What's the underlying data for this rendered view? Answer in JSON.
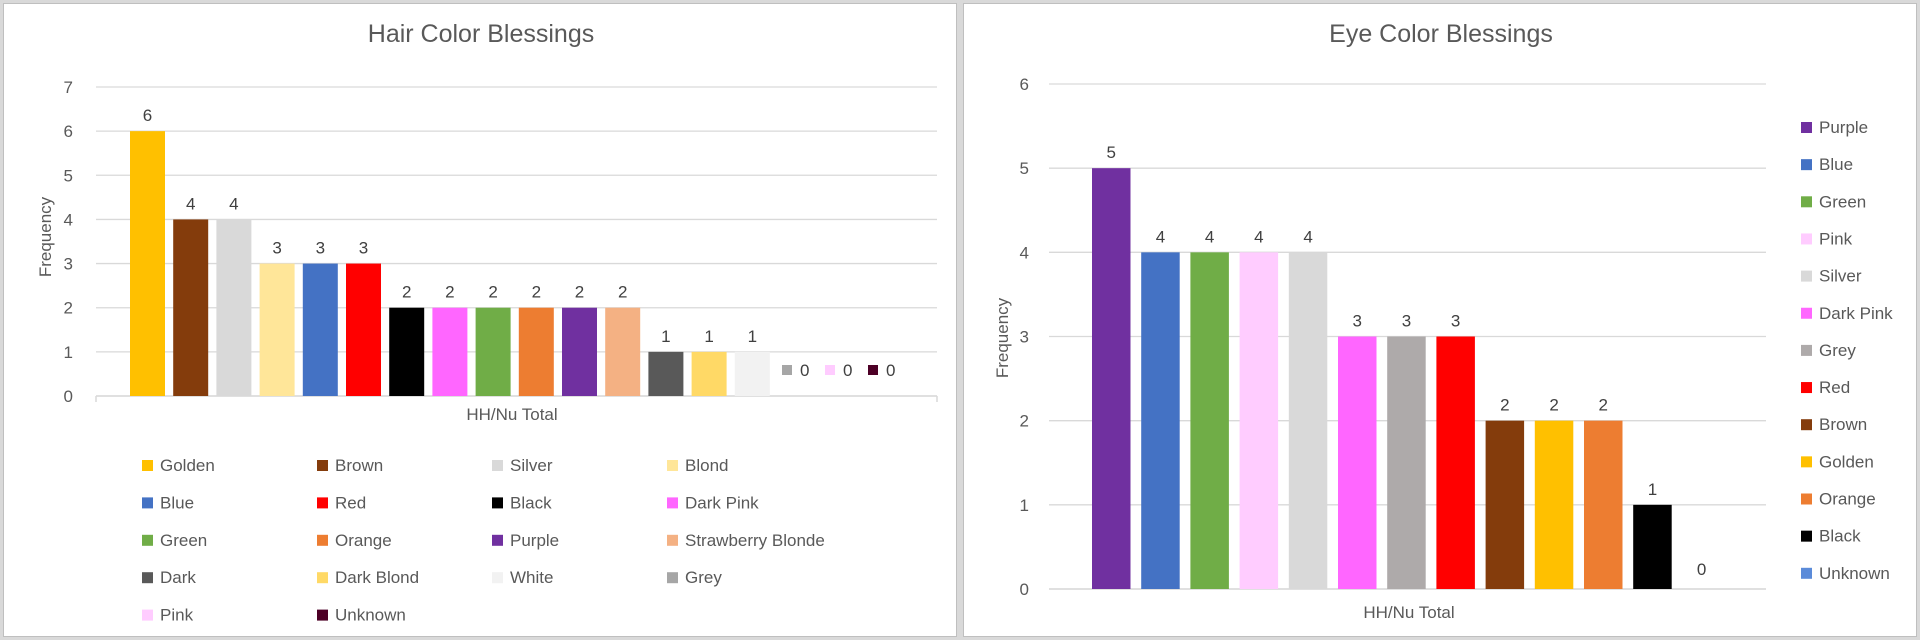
{
  "chart_data": [
    {
      "type": "bar",
      "title": "Hair Color Blessings",
      "xlabel": "HH/Nu Total",
      "ylabel": "Frequency",
      "ylim": [
        0,
        7
      ],
      "yticks": [
        "0",
        "1",
        "2",
        "3",
        "4",
        "5",
        "6",
        "7"
      ],
      "grid": true,
      "legend_position": "bottom",
      "series": [
        {
          "name": "Golden",
          "value": 6,
          "color": "#FFC000"
        },
        {
          "name": "Brown",
          "value": 4,
          "color": "#843C0C"
        },
        {
          "name": "Silver",
          "value": 4,
          "color": "#D9D9D9"
        },
        {
          "name": "Blond",
          "value": 3,
          "color": "#FFE699"
        },
        {
          "name": "Blue",
          "value": 3,
          "color": "#4472C4"
        },
        {
          "name": "Red",
          "value": 3,
          "color": "#FF0000"
        },
        {
          "name": "Black",
          "value": 2,
          "color": "#000000"
        },
        {
          "name": "Dark Pink",
          "value": 2,
          "color": "#FF66FF"
        },
        {
          "name": "Green",
          "value": 2,
          "color": "#70AD47"
        },
        {
          "name": "Orange",
          "value": 2,
          "color": "#ED7D31"
        },
        {
          "name": "Purple",
          "value": 2,
          "color": "#7030A0"
        },
        {
          "name": "Strawberry Blonde",
          "value": 2,
          "color": "#F4B183"
        },
        {
          "name": "Dark",
          "value": 1,
          "color": "#595959"
        },
        {
          "name": "Dark Blond",
          "value": 1,
          "color": "#FFD966"
        },
        {
          "name": "White",
          "value": 1,
          "color": "#F2F2F2"
        },
        {
          "name": "Grey",
          "value": 0,
          "color": "#A6A6A6"
        },
        {
          "name": "Pink",
          "value": 0,
          "color": "#FFCCFF"
        },
        {
          "name": "Unknown",
          "value": 0,
          "color": "#4D0026"
        }
      ]
    },
    {
      "type": "bar",
      "title": "Eye Color Blessings",
      "xlabel": "HH/Nu Total",
      "ylabel": "Frequency",
      "ylim": [
        0,
        6
      ],
      "yticks": [
        "0",
        "1",
        "2",
        "3",
        "4",
        "5",
        "6"
      ],
      "grid": true,
      "legend_position": "right",
      "series": [
        {
          "name": "Purple",
          "value": 5,
          "color": "#7030A0"
        },
        {
          "name": "Blue",
          "value": 4,
          "color": "#4472C4"
        },
        {
          "name": "Green",
          "value": 4,
          "color": "#70AD47"
        },
        {
          "name": "Pink",
          "value": 4,
          "color": "#FFCCFF"
        },
        {
          "name": "Silver",
          "value": 4,
          "color": "#D9D9D9"
        },
        {
          "name": "Dark Pink",
          "value": 3,
          "color": "#FF66FF"
        },
        {
          "name": "Grey",
          "value": 3,
          "color": "#AEAAAA"
        },
        {
          "name": "Red",
          "value": 3,
          "color": "#FF0000"
        },
        {
          "name": "Brown",
          "value": 2,
          "color": "#843C0C"
        },
        {
          "name": "Golden",
          "value": 2,
          "color": "#FFC000"
        },
        {
          "name": "Orange",
          "value": 2,
          "color": "#ED7D31"
        },
        {
          "name": "Black",
          "value": 1,
          "color": "#000000"
        },
        {
          "name": "Unknown",
          "value": 0,
          "color": "#5B8BD9"
        }
      ]
    }
  ]
}
